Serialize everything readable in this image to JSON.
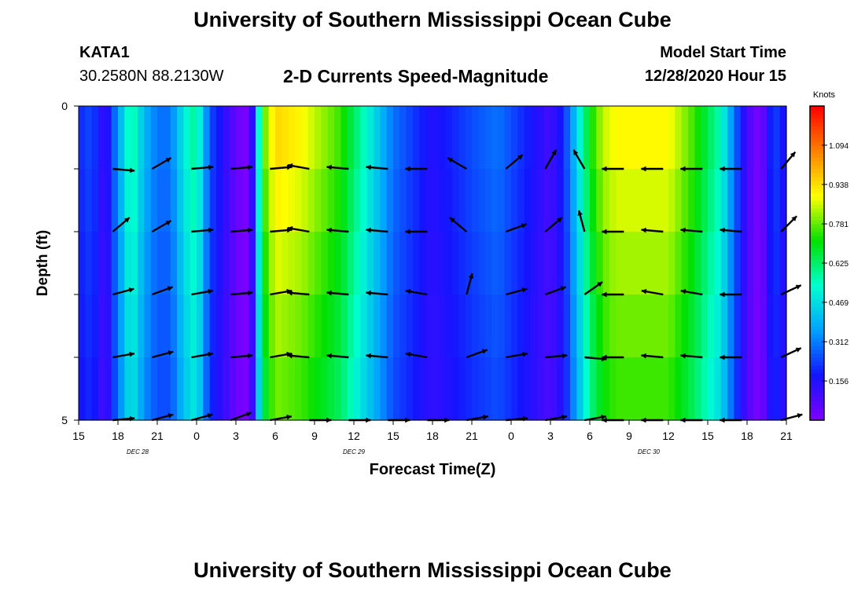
{
  "header": {
    "title": "University of Southern Mississippi Ocean Cube",
    "station_id": "KATA1",
    "station_coords": "30.2580N 88.2130W",
    "plot_title": "2-D Currents Speed-Magnitude",
    "model_start_label": "Model Start Time",
    "model_start_value": "12/28/2020 Hour 15"
  },
  "footer": {
    "title": "University of Southern Mississippi Ocean Cube"
  },
  "chart_data": {
    "type": "heatmap",
    "title": "2-D Currents Speed-Magnitude",
    "xlabel": "Forecast Time(Z)",
    "ylabel": "Depth (ft)",
    "x_hours": [
      0,
      54
    ],
    "x_ticks": [
      "15",
      "18",
      "21",
      "0",
      "3",
      "6",
      "9",
      "12",
      "15",
      "18",
      "21",
      "0",
      "3",
      "6",
      "9",
      "12",
      "15",
      "18",
      "21"
    ],
    "date_labels": [
      {
        "text": "DEC 28",
        "hour": 4.5
      },
      {
        "text": "DEC 29",
        "hour": 21
      },
      {
        "text": "DEC 30",
        "hour": 43.5
      }
    ],
    "y_range": [
      0,
      5
    ],
    "y_tick_labels": [
      {
        "depth": 0,
        "label": "0"
      },
      {
        "depth": 5,
        "label": "5"
      }
    ],
    "depth_levels": [
      0.25,
      1.0,
      2.0,
      3.0,
      4.0,
      5.0
    ],
    "colorbar": {
      "unit_label": "Knots",
      "min": 0,
      "max": 1.25,
      "ticks": [
        "0.156",
        "0.312",
        "0.469",
        "0.625",
        "0.781",
        "0.938",
        "1.094"
      ],
      "colors": [
        "#8000ff",
        "#1414ff",
        "#00a0ff",
        "#00ffd0",
        "#00e000",
        "#ffff00",
        "#ff8000",
        "#ff0000"
      ]
    },
    "speed_profile_hours": [
      0,
      1,
      2,
      3,
      4,
      5,
      6,
      7,
      8,
      9,
      10,
      11,
      12,
      12.7,
      13.3,
      14,
      15,
      17,
      20,
      24,
      27,
      30,
      32,
      36,
      37,
      38,
      39,
      40,
      41,
      45,
      47,
      49,
      50,
      51,
      52,
      53,
      54
    ],
    "speed_profile_knots": [
      0.2,
      0.25,
      0.1,
      0.35,
      0.6,
      0.4,
      0.3,
      0.3,
      0.5,
      0.6,
      0.25,
      0.15,
      0.05,
      0.0,
      0.15,
      0.75,
      0.95,
      0.9,
      0.75,
      0.3,
      0.15,
      0.25,
      0.3,
      0.1,
      0.2,
      0.45,
      0.7,
      0.85,
      0.9,
      0.9,
      0.75,
      0.55,
      0.3,
      0.1,
      0.0,
      0.25,
      0.15
    ],
    "vector_hours": [
      3,
      6,
      9,
      12,
      15,
      18,
      21,
      24,
      27,
      30,
      33,
      36,
      39,
      42,
      45,
      48,
      51,
      54
    ],
    "vector_depths": [
      1,
      2,
      3,
      4,
      5
    ],
    "vector_directions_deg": [
      [
        95,
        60,
        85,
        85,
        85,
        280,
        275,
        275,
        270,
        300,
        50,
        30,
        330,
        270,
        270,
        270,
        270,
        40
      ],
      [
        50,
        60,
        85,
        85,
        85,
        280,
        275,
        275,
        270,
        310,
        70,
        50,
        345,
        270,
        275,
        275,
        275,
        45
      ],
      [
        75,
        70,
        80,
        85,
        80,
        275,
        275,
        275,
        280,
        15,
        75,
        70,
        55,
        270,
        280,
        280,
        270,
        65
      ],
      [
        80,
        75,
        80,
        85,
        80,
        275,
        275,
        275,
        280,
        70,
        80,
        85,
        95,
        270,
        275,
        275,
        270,
        65
      ],
      [
        85,
        75,
        75,
        70,
        80,
        90,
        90,
        90,
        90,
        80,
        85,
        80,
        80,
        270,
        270,
        270,
        270,
        75
      ]
    ]
  }
}
